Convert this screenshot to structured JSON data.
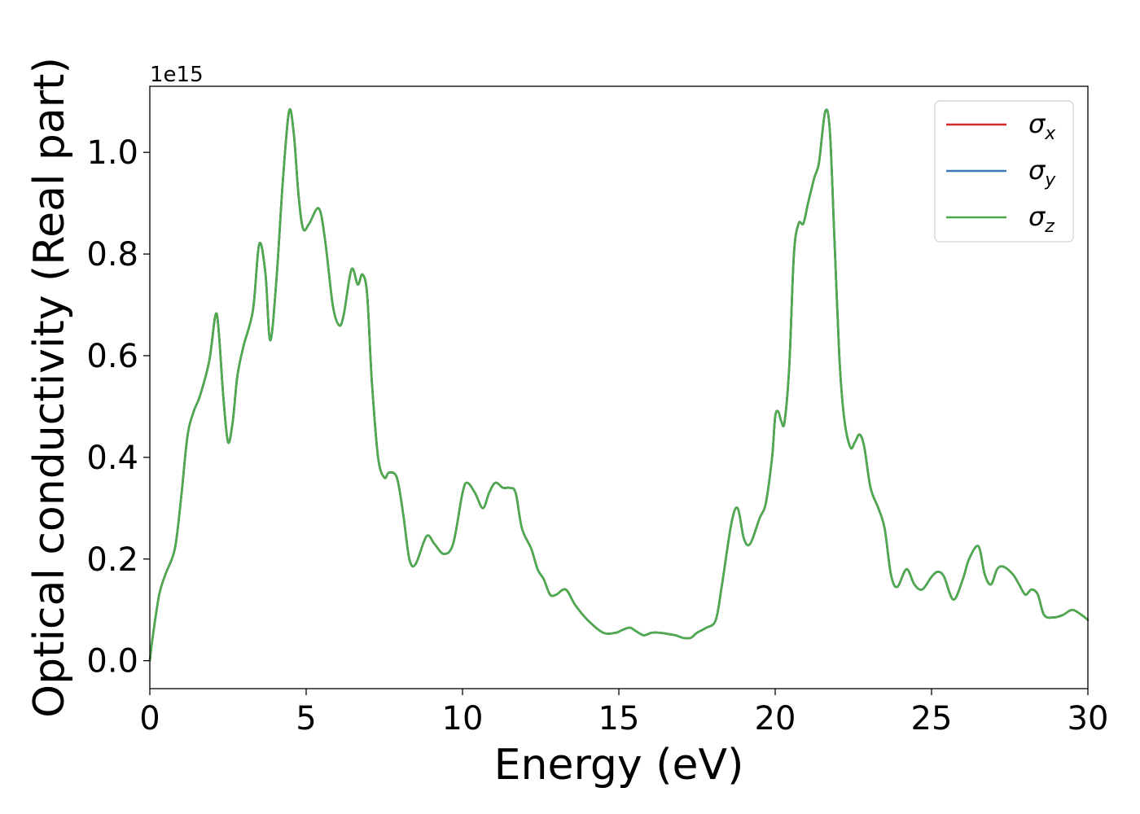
{
  "chart_data": {
    "type": "line",
    "title": "",
    "xlabel": "Energy (eV)",
    "ylabel": "Optical conductivity (Real part)",
    "y_offset_label": "1e15",
    "y_scale_factor": 1000000000000000.0,
    "xlim": [
      0,
      30
    ],
    "ylim": [
      -0.055,
      1.13
    ],
    "x_ticks": [
      0,
      5,
      10,
      15,
      20,
      25,
      30
    ],
    "x_tick_labels": [
      "0",
      "5",
      "10",
      "15",
      "20",
      "25",
      "30"
    ],
    "y_ticks": [
      0.0,
      0.2,
      0.4,
      0.6,
      0.8,
      1.0
    ],
    "y_tick_labels": [
      "0.0",
      "0.2",
      "0.4",
      "0.6",
      "0.8",
      "1.0"
    ],
    "grid": false,
    "legend_position": "top-right",
    "legend": [
      {
        "symbol": "σ",
        "subscript": "x",
        "color": "#d62728"
      },
      {
        "symbol": "σ",
        "subscript": "y",
        "color": "#3a7ab8"
      },
      {
        "symbol": "σ",
        "subscript": "z",
        "color": "#4daa4d"
      }
    ],
    "x": [
      0,
      0.1,
      0.3,
      0.5,
      0.8,
      1.0,
      1.2,
      1.4,
      1.6,
      1.9,
      2.1,
      2.2,
      2.35,
      2.5,
      2.65,
      2.8,
      3.0,
      3.3,
      3.5,
      3.7,
      3.85,
      4.05,
      4.25,
      4.45,
      4.6,
      4.75,
      4.9,
      5.1,
      5.4,
      5.6,
      5.85,
      6.05,
      6.2,
      6.45,
      6.65,
      6.8,
      6.95,
      7.1,
      7.3,
      7.5,
      7.65,
      7.9,
      8.1,
      8.3,
      8.5,
      8.85,
      9.1,
      9.4,
      9.7,
      10.0,
      10.15,
      10.4,
      10.65,
      10.85,
      11.05,
      11.3,
      11.5,
      11.7,
      11.9,
      12.2,
      12.4,
      12.6,
      12.8,
      13.0,
      13.3,
      13.6,
      14.0,
      14.5,
      14.9,
      15.1,
      15.35,
      15.55,
      15.8,
      16.05,
      16.3,
      16.8,
      17.05,
      17.3,
      17.5,
      17.8,
      18.1,
      18.3,
      18.6,
      18.8,
      19.0,
      19.2,
      19.5,
      19.7,
      19.9,
      20.0,
      20.1,
      20.2,
      20.3,
      20.45,
      20.6,
      20.75,
      20.9,
      21.05,
      21.25,
      21.4,
      21.6,
      21.75,
      21.9,
      22.05,
      22.2,
      22.4,
      22.55,
      22.7,
      22.85,
      23.05,
      23.3,
      23.5,
      23.7,
      23.9,
      24.2,
      24.45,
      24.7,
      25.0,
      25.2,
      25.4,
      25.7,
      26.0,
      26.2,
      26.5,
      26.7,
      26.9,
      27.1,
      27.3,
      27.6,
      27.8,
      28.0,
      28.2,
      28.4,
      28.6,
      28.9,
      29.2,
      29.5,
      29.8,
      30.0
    ],
    "series": [
      {
        "name": "",
        "color": "#d62728",
        "values": [
          0.0,
          0.05,
          0.13,
          0.17,
          0.22,
          0.32,
          0.44,
          0.49,
          0.52,
          0.59,
          0.68,
          0.65,
          0.52,
          0.43,
          0.47,
          0.56,
          0.62,
          0.69,
          0.82,
          0.76,
          0.63,
          0.75,
          0.94,
          1.08,
          1.04,
          0.92,
          0.85,
          0.86,
          0.89,
          0.83,
          0.7,
          0.66,
          0.68,
          0.77,
          0.74,
          0.76,
          0.72,
          0.55,
          0.4,
          0.36,
          0.37,
          0.36,
          0.29,
          0.2,
          0.19,
          0.245,
          0.23,
          0.21,
          0.23,
          0.33,
          0.35,
          0.33,
          0.3,
          0.33,
          0.35,
          0.34,
          0.34,
          0.33,
          0.26,
          0.22,
          0.18,
          0.16,
          0.13,
          0.13,
          0.14,
          0.11,
          0.08,
          0.055,
          0.055,
          0.06,
          0.065,
          0.058,
          0.05,
          0.055,
          0.055,
          0.05,
          0.045,
          0.045,
          0.055,
          0.065,
          0.08,
          0.15,
          0.27,
          0.3,
          0.24,
          0.23,
          0.28,
          0.31,
          0.4,
          0.48,
          0.49,
          0.47,
          0.47,
          0.58,
          0.8,
          0.86,
          0.86,
          0.9,
          0.95,
          0.98,
          1.08,
          1.04,
          0.82,
          0.6,
          0.48,
          0.42,
          0.43,
          0.445,
          0.42,
          0.34,
          0.3,
          0.26,
          0.17,
          0.145,
          0.18,
          0.15,
          0.14,
          0.165,
          0.175,
          0.165,
          0.12,
          0.16,
          0.2,
          0.225,
          0.17,
          0.15,
          0.18,
          0.185,
          0.17,
          0.15,
          0.13,
          0.14,
          0.13,
          0.09,
          0.085,
          0.09,
          0.1,
          0.09,
          0.08
        ]
      },
      {
        "name": "",
        "color": "#3a7ab8",
        "values": [
          0.0,
          0.05,
          0.13,
          0.17,
          0.22,
          0.32,
          0.44,
          0.49,
          0.52,
          0.59,
          0.68,
          0.65,
          0.52,
          0.43,
          0.47,
          0.56,
          0.62,
          0.69,
          0.82,
          0.76,
          0.63,
          0.75,
          0.94,
          1.08,
          1.04,
          0.92,
          0.85,
          0.86,
          0.89,
          0.83,
          0.7,
          0.66,
          0.68,
          0.77,
          0.74,
          0.76,
          0.72,
          0.55,
          0.4,
          0.36,
          0.37,
          0.36,
          0.29,
          0.2,
          0.19,
          0.245,
          0.23,
          0.21,
          0.23,
          0.33,
          0.35,
          0.33,
          0.3,
          0.33,
          0.35,
          0.34,
          0.34,
          0.33,
          0.26,
          0.22,
          0.18,
          0.16,
          0.13,
          0.13,
          0.14,
          0.11,
          0.08,
          0.055,
          0.055,
          0.06,
          0.065,
          0.058,
          0.05,
          0.055,
          0.055,
          0.05,
          0.045,
          0.045,
          0.055,
          0.065,
          0.08,
          0.15,
          0.27,
          0.3,
          0.24,
          0.23,
          0.28,
          0.31,
          0.4,
          0.48,
          0.49,
          0.47,
          0.47,
          0.58,
          0.8,
          0.86,
          0.86,
          0.9,
          0.95,
          0.98,
          1.08,
          1.04,
          0.82,
          0.6,
          0.48,
          0.42,
          0.43,
          0.445,
          0.42,
          0.34,
          0.3,
          0.26,
          0.17,
          0.145,
          0.18,
          0.15,
          0.14,
          0.165,
          0.175,
          0.165,
          0.12,
          0.16,
          0.2,
          0.225,
          0.17,
          0.15,
          0.18,
          0.185,
          0.17,
          0.15,
          0.13,
          0.14,
          0.13,
          0.09,
          0.085,
          0.09,
          0.1,
          0.09,
          0.08
        ]
      },
      {
        "name": "",
        "color": "#4daa4d",
        "values": [
          0.0,
          0.05,
          0.13,
          0.17,
          0.22,
          0.32,
          0.44,
          0.49,
          0.52,
          0.59,
          0.68,
          0.65,
          0.52,
          0.43,
          0.47,
          0.56,
          0.62,
          0.69,
          0.82,
          0.76,
          0.63,
          0.75,
          0.94,
          1.08,
          1.04,
          0.92,
          0.85,
          0.86,
          0.89,
          0.83,
          0.7,
          0.66,
          0.68,
          0.77,
          0.74,
          0.76,
          0.72,
          0.55,
          0.4,
          0.36,
          0.37,
          0.36,
          0.29,
          0.2,
          0.19,
          0.245,
          0.23,
          0.21,
          0.23,
          0.33,
          0.35,
          0.33,
          0.3,
          0.33,
          0.35,
          0.34,
          0.34,
          0.33,
          0.26,
          0.22,
          0.18,
          0.16,
          0.13,
          0.13,
          0.14,
          0.11,
          0.08,
          0.055,
          0.055,
          0.06,
          0.065,
          0.058,
          0.05,
          0.055,
          0.055,
          0.05,
          0.045,
          0.045,
          0.055,
          0.065,
          0.08,
          0.15,
          0.27,
          0.3,
          0.24,
          0.23,
          0.28,
          0.31,
          0.4,
          0.48,
          0.49,
          0.47,
          0.47,
          0.58,
          0.8,
          0.86,
          0.86,
          0.9,
          0.95,
          0.98,
          1.08,
          1.04,
          0.82,
          0.6,
          0.48,
          0.42,
          0.43,
          0.445,
          0.42,
          0.34,
          0.3,
          0.26,
          0.17,
          0.145,
          0.18,
          0.15,
          0.14,
          0.165,
          0.175,
          0.165,
          0.12,
          0.16,
          0.2,
          0.225,
          0.17,
          0.15,
          0.18,
          0.185,
          0.17,
          0.15,
          0.13,
          0.14,
          0.13,
          0.09,
          0.085,
          0.09,
          0.1,
          0.09,
          0.08
        ]
      }
    ]
  }
}
